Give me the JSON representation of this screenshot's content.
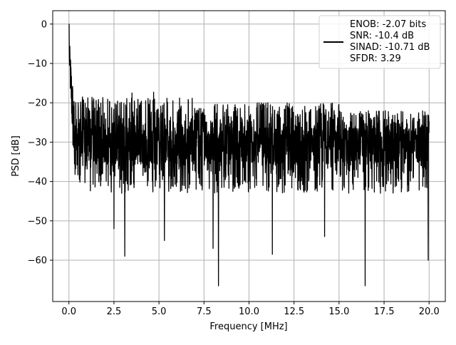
{
  "chart_data": {
    "type": "line",
    "title": "",
    "xlabel": "Frequency [MHz]",
    "ylabel": "PSD [dB]",
    "xlim": [
      -0.9,
      20.9
    ],
    "ylim": [
      -70.5,
      3.4
    ],
    "xticks": [
      0.0,
      2.5,
      5.0,
      7.5,
      10.0,
      12.5,
      15.0,
      17.5,
      20.0
    ],
    "xtick_labels": [
      "0.0",
      "2.5",
      "5.0",
      "7.5",
      "10.0",
      "12.5",
      "15.0",
      "17.5",
      "20.0"
    ],
    "yticks": [
      0,
      -10,
      -20,
      -30,
      -40,
      -50,
      -60
    ],
    "ytick_labels": [
      "0",
      "−10",
      "−20",
      "−30",
      "−40",
      "−50",
      "−60"
    ],
    "grid": true,
    "legend_position": "top-right",
    "series": [
      {
        "name": "",
        "color": "#000000",
        "points": 2000,
        "x_range": [
          0.0,
          20.0
        ],
        "start_value": 0,
        "noise_floor_db": -31,
        "noise_span_db": [
          -42,
          -19
        ],
        "notable_minima": [
          {
            "x": 2.5,
            "y": -52
          },
          {
            "x": 3.1,
            "y": -59
          },
          {
            "x": 5.3,
            "y": -55
          },
          {
            "x": 8.0,
            "y": -57
          },
          {
            "x": 8.3,
            "y": -66.5
          },
          {
            "x": 11.3,
            "y": -58.5
          },
          {
            "x": 14.2,
            "y": -54
          },
          {
            "x": 16.45,
            "y": -66.5
          },
          {
            "x": 19.95,
            "y": -60
          }
        ],
        "notable_maxima": [
          {
            "x": 3.5,
            "y": -17.5
          },
          {
            "x": 4.7,
            "y": -17.3
          }
        ]
      }
    ],
    "legend_lines": [
      "ENOB: -2.07 bits",
      "SNR: -10.4 dB",
      "SINAD: -10.71 dB",
      "SFDR: 3.29"
    ]
  }
}
